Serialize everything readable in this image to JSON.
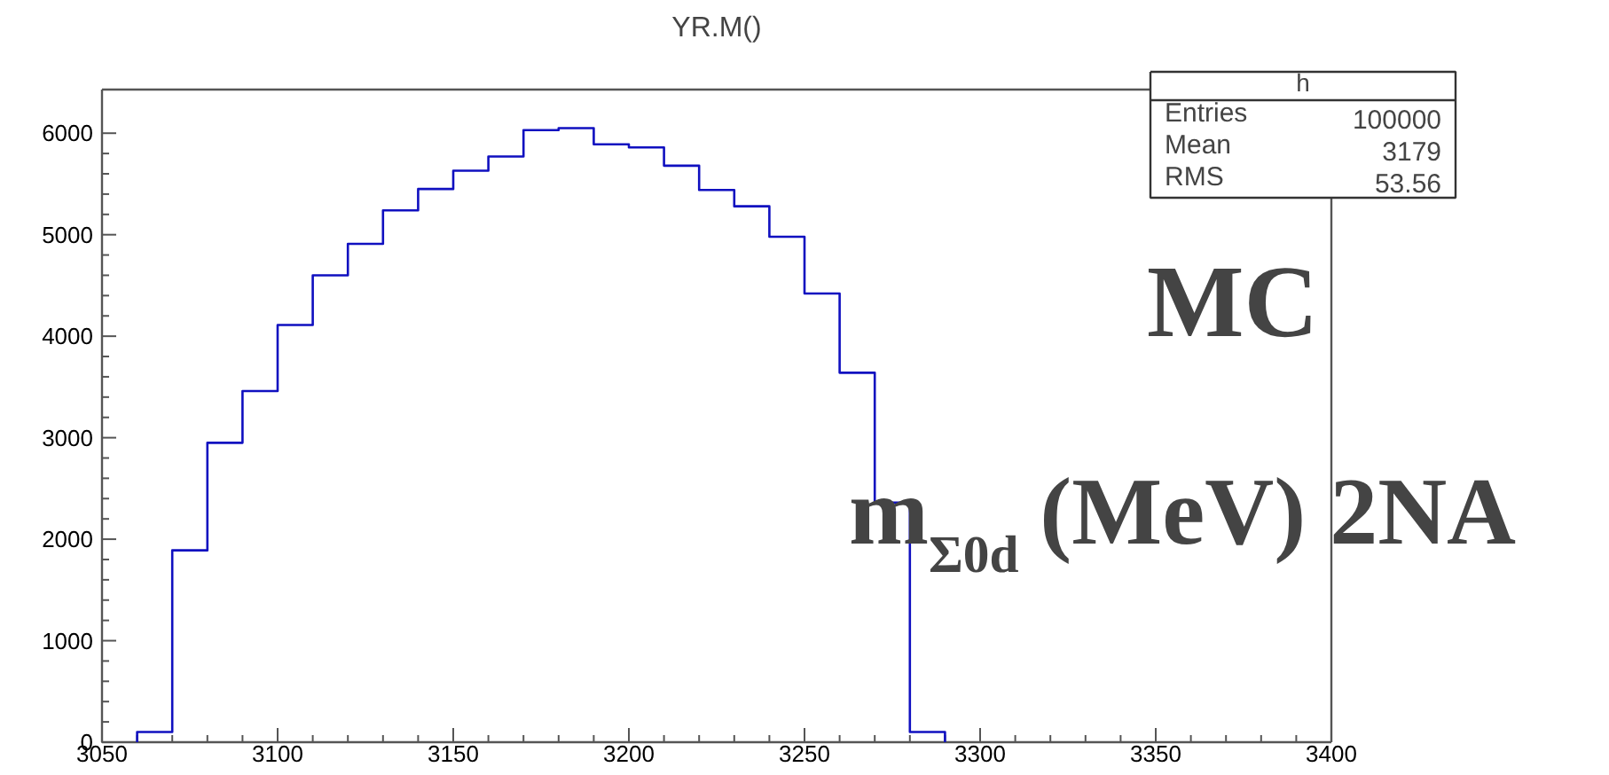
{
  "chart_data": {
    "type": "histogram",
    "title": "YR.M()",
    "bins": [
      3060,
      3070,
      3080,
      3090,
      3100,
      3110,
      3120,
      3130,
      3140,
      3150,
      3160,
      3170,
      3180,
      3190,
      3200,
      3210,
      3220,
      3230,
      3240,
      3250,
      3260,
      3270,
      3280,
      3290
    ],
    "values": [
      100,
      1890,
      2950,
      3460,
      4110,
      4600,
      4910,
      5240,
      5450,
      5630,
      5770,
      6030,
      6050,
      5890,
      5860,
      5680,
      5440,
      5280,
      4980,
      4420,
      3640,
      2360,
      100
    ],
    "color": "#1010c0",
    "xlim": [
      3050,
      3400
    ],
    "xticks": [
      3050,
      3100,
      3150,
      3200,
      3250,
      3300,
      3350,
      3400
    ],
    "ylim": [
      0,
      6430
    ],
    "yticks": [
      0,
      1000,
      2000,
      3000,
      4000,
      5000,
      6000
    ],
    "grid": false,
    "annotations": [
      "h",
      "Entries",
      "100000",
      "Mean",
      "3179",
      "RMS",
      "53.56",
      "MC",
      "m$_{Σ0d}$ (MeV)  2NA"
    ]
  }
}
